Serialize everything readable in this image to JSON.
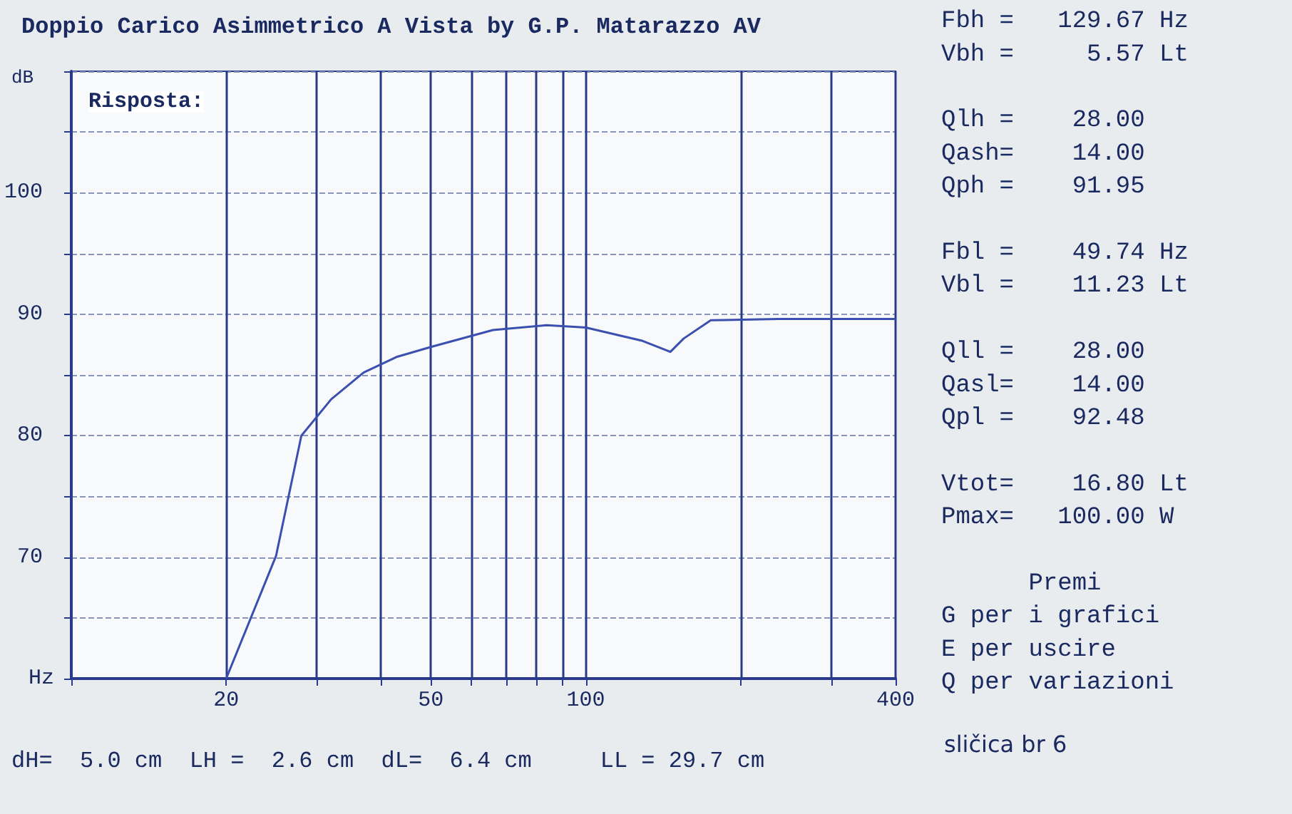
{
  "chart_data": {
    "type": "line",
    "title": "Doppio Carico Asimmetrico A Vista by G.P. Matarazzo AV",
    "subtitle": "Risposta:",
    "xlabel": "Hz",
    "ylabel": "dB",
    "log": "x",
    "x": [
      20,
      25,
      28,
      32,
      37,
      43,
      50,
      66,
      84,
      100,
      129,
      146,
      155,
      175,
      237,
      400
    ],
    "series": [
      {
        "color": "#3a4fb0",
        "values": [
          60,
          70.1,
          80,
          83,
          85.2,
          86.5,
          87.3,
          88.7,
          89.1,
          88.9,
          87.8,
          86.9,
          88,
          89.5,
          89.6,
          89.6
        ]
      }
    ],
    "xlim": [
      10,
      400
    ],
    "xticks": [
      {
        "value": 10,
        "label": null
      },
      20,
      {
        "value": 30,
        "label": null
      },
      {
        "value": 40,
        "label": null
      },
      50,
      {
        "value": 60,
        "label": null
      },
      {
        "value": 70,
        "label": null
      },
      {
        "value": 80,
        "label": null
      },
      {
        "value": 90,
        "label": null
      },
      100,
      {
        "value": 200,
        "label": null
      },
      {
        "value": 300,
        "label": null
      },
      400
    ],
    "ylim": [
      60,
      110
    ],
    "yticks": [
      {
        "value": 60,
        "label": null
      },
      {
        "value": 65,
        "label": null
      },
      70,
      {
        "value": 75,
        "label": null
      },
      80,
      {
        "value": 85,
        "label": null
      },
      90,
      {
        "value": 95,
        "label": null
      },
      100,
      {
        "value": 105,
        "label": null
      },
      {
        "value": 110,
        "label": null
      }
    ],
    "grid": true,
    "marker": "none",
    "line_style": "solid",
    "annotations": [
      "Fbh =   129.67 Hz\nVbh =     5.57 Lt",
      "Qlh =    28.00\nQash=    14.00\nQph =    91.95",
      "Fbl =    49.74 Hz\nVbl =    11.23 Lt",
      "Qll =    28.00\nQasl=    14.00\nQpl =    92.48",
      "Vtot=    16.80 Lt\nPmax=   100.00 W",
      "      Premi\nG per i grafici\nE per uscire\nQ per variazioni",
      "dH=  5.0 cm  LH =  2.6 cm  dL=  6.4 cm     LL = 29.7 cm",
      "sličica br 6"
    ]
  }
}
